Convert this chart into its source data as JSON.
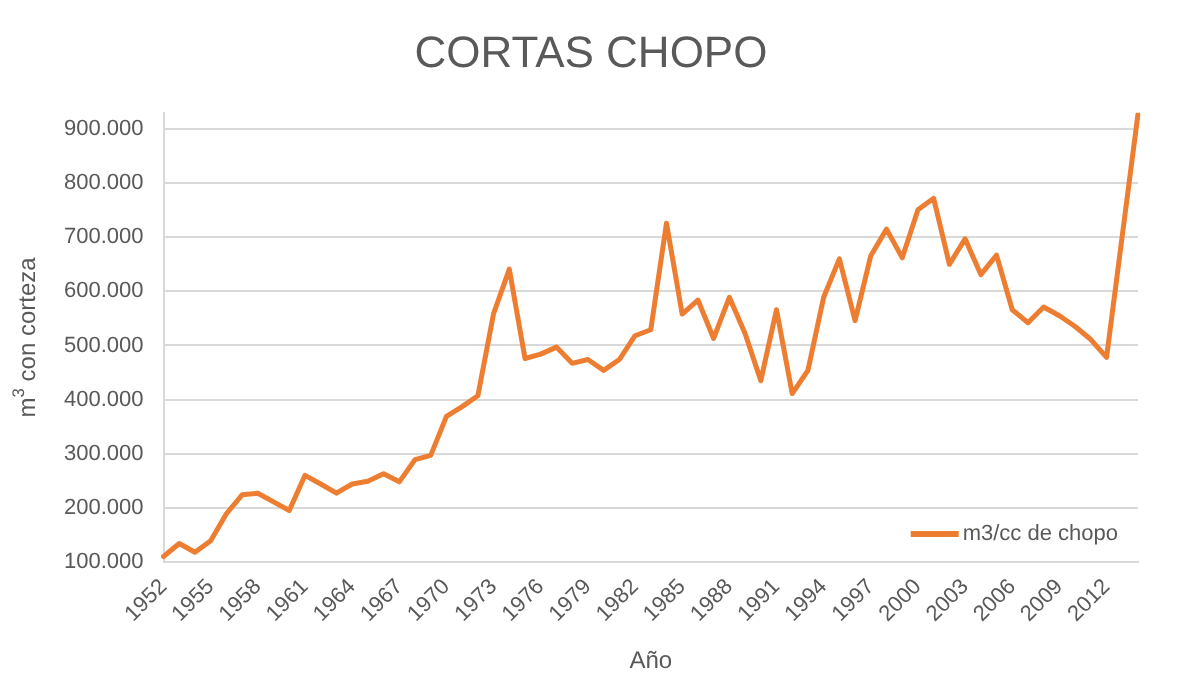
{
  "chart_data": {
    "type": "line",
    "title": "CORTAS CHOPO",
    "xlabel": "Año",
    "ylabel": "m$^{3}$ con corteza",
    "categories": [
      "1952",
      null,
      null,
      "1955",
      null,
      null,
      "1958",
      null,
      null,
      "1961",
      null,
      null,
      "1964",
      null,
      null,
      "1967",
      null,
      null,
      "1970",
      null,
      null,
      "1973",
      null,
      null,
      "1976",
      null,
      null,
      "1979",
      null,
      null,
      "1982",
      null,
      null,
      "1985",
      null,
      null,
      "1988",
      null,
      null,
      "1991",
      null,
      null,
      "1994",
      null,
      null,
      "1997",
      null,
      null,
      "2000",
      null,
      null,
      "2003",
      null,
      null,
      "2006",
      null,
      null,
      "2009",
      null,
      null,
      "2012",
      null,
      null
    ],
    "series": [
      {
        "name": "m3/cc de chopo",
        "color": "#ed7d31",
        "values": [
          110000,
          134000,
          118000,
          139000,
          189000,
          224000,
          227000,
          211000,
          195000,
          260000,
          244000,
          227000,
          244000,
          249000,
          263000,
          248000,
          289000,
          297000,
          369000,
          387000,
          407000,
          559000,
          641000,
          476000,
          484000,
          497000,
          467000,
          474000,
          454000,
          474000,
          518000,
          529000,
          726000,
          558000,
          584000,
          513000,
          589000,
          522000,
          435000,
          566000,
          411000,
          454000,
          589000,
          660000,
          546000,
          666000,
          715000,
          662000,
          751000,
          772000,
          650000,
          697000,
          631000,
          667000,
          566000,
          542000,
          571000,
          555000,
          535000,
          511000,
          478000,
          null,
          928000
        ]
      }
    ],
    "ylim": [
      100000,
      930000
    ],
    "yticks": [
      {
        "value": 100000,
        "label": "100.000"
      },
      {
        "value": 200000,
        "label": "200.000"
      },
      {
        "value": 300000,
        "label": "300.000"
      },
      {
        "value": 400000,
        "label": "400.000"
      },
      {
        "value": 500000,
        "label": "500.000"
      },
      {
        "value": 600000,
        "label": "600.000"
      },
      {
        "value": 700000,
        "label": "700.000"
      },
      {
        "value": 800000,
        "label": "800.000"
      },
      {
        "value": 900000,
        "label": "900.000"
      }
    ],
    "grid": "y",
    "legend": "bottom right",
    "marker": "none",
    "line_style": "solid"
  }
}
